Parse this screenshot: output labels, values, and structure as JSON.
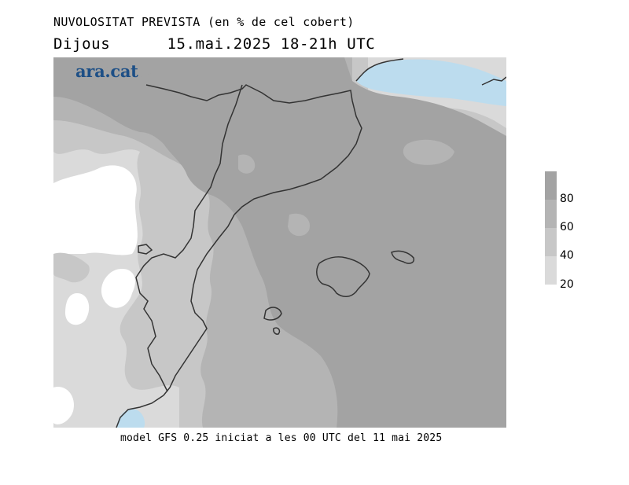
{
  "header": {
    "title": "NUVOLOSITAT PREVISTA (en % de cel cobert)",
    "day": "Dijous",
    "date_time": "15.mai.2025 18-21h UTC"
  },
  "logo": {
    "text": "ara.cat",
    "color": "#1d4f86"
  },
  "footer": {
    "text": "model GFS 0.25 iniciat a les 00 UTC del 11 mai 2025"
  },
  "legend": {
    "labels": [
      "80",
      "60",
      "40",
      "20"
    ],
    "colors": {
      "80_100": "#a3a3a3",
      "60_80": "#b4b4b4",
      "40_60": "#c7c7c7",
      "20_40": "#dadada",
      "0_20": "#ffffff",
      "clear_sea": "#bcdcee"
    }
  }
}
